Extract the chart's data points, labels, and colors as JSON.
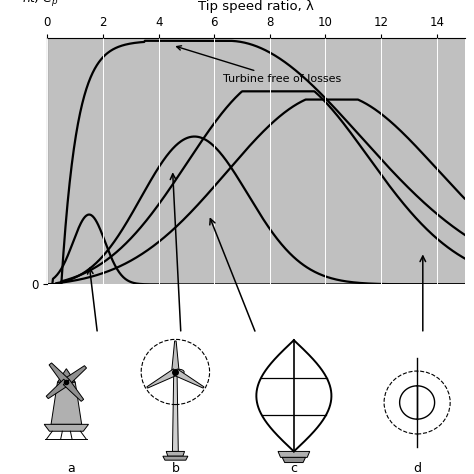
{
  "title": "Tip speed ratio, λ",
  "xlim": [
    0,
    15
  ],
  "ylim": [
    0,
    0.6
  ],
  "xticks": [
    0,
    2,
    4,
    6,
    8,
    10,
    12,
    14
  ],
  "grid_color": "#ffffff",
  "bg_color": "#c0c0c0",
  "annotation_text": "Turbine free of losses",
  "fig_bg": "#ffffff"
}
